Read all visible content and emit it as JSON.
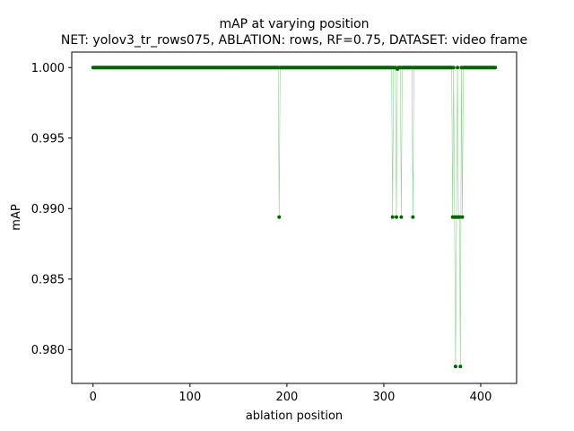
{
  "chart_data": {
    "type": "scatter",
    "title": "mAP at varying position",
    "subtitle": "NET: yolov3_tr_rows075, ABLATION: rows, RF=0.75, DATASET: video frame",
    "xlabel": "ablation position",
    "ylabel": "mAP",
    "xlim": [
      -22,
      437
    ],
    "ylim": [
      0.9776,
      1.0011
    ],
    "xticks": [
      0,
      100,
      200,
      300,
      400
    ],
    "xtick_labels": [
      "0",
      "100",
      "200",
      "300",
      "400"
    ],
    "yticks": [
      0.98,
      0.985,
      0.99,
      0.995,
      1.0
    ],
    "ytick_labels": [
      "0.980",
      "0.985",
      "0.990",
      "0.995",
      "1.000"
    ],
    "grid": false,
    "connector_line": true,
    "x_range": [
      0,
      415
    ],
    "baseline_value": 1.0,
    "dips": [
      {
        "x": 192,
        "y": 0.9894
      },
      {
        "x": 309,
        "y": 0.9894
      },
      {
        "x": 313,
        "y": 0.9894
      },
      {
        "x": 314,
        "y": 0.9999
      },
      {
        "x": 318,
        "y": 0.9894
      },
      {
        "x": 330,
        "y": 0.9894
      },
      {
        "x": 371,
        "y": 0.9894
      },
      {
        "x": 373,
        "y": 0.9894
      },
      {
        "x": 374,
        "y": 0.9788
      },
      {
        "x": 375,
        "y": 0.9894
      },
      {
        "x": 377,
        "y": 0.9894
      },
      {
        "x": 378,
        "y": 0.9894
      },
      {
        "x": 379,
        "y": 0.9788
      },
      {
        "x": 381,
        "y": 0.9894
      }
    ],
    "colors": {
      "marker": "#006400",
      "line": "#90d090"
    }
  }
}
